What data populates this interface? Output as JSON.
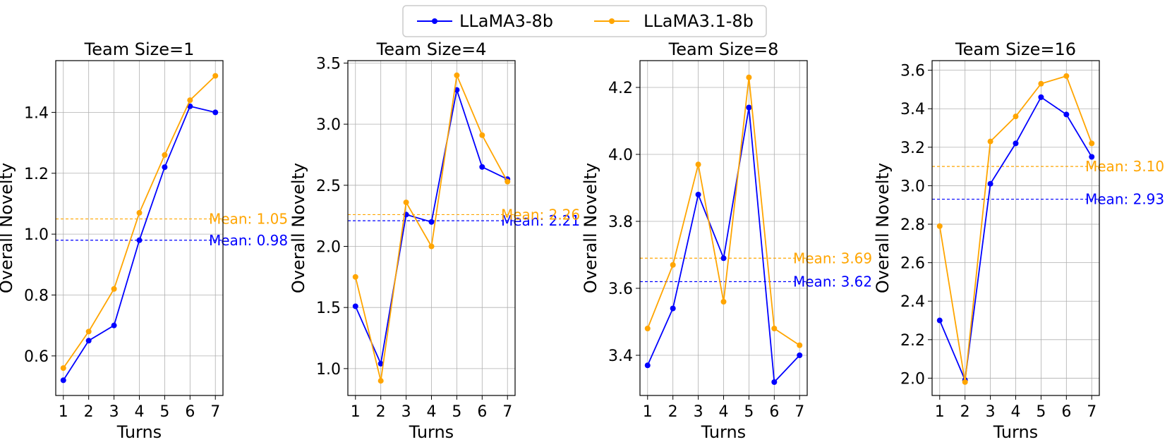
{
  "legend": {
    "entries": [
      "LLaMA3-8b",
      "LLaMA3.1-8b"
    ]
  },
  "colors": {
    "LLaMA3-8b": "#0000ff",
    "LLaMA3.1-8b": "#ffa500"
  },
  "chart_data": [
    {
      "type": "line",
      "title": "Team Size=1",
      "xlabel": "Turns",
      "ylabel": "Overall Novelty",
      "x": [
        1,
        2,
        3,
        4,
        5,
        6,
        7
      ],
      "ylim": [
        0.47,
        1.57
      ],
      "yticks": [
        0.6,
        0.8,
        1.0,
        1.2,
        1.4
      ],
      "series": [
        {
          "name": "LLaMA3-8b",
          "values": [
            0.52,
            0.65,
            0.7,
            0.98,
            1.22,
            1.42,
            1.4
          ],
          "mean": 0.98,
          "mean_label": "Mean: 0.98"
        },
        {
          "name": "LLaMA3.1-8b",
          "values": [
            0.56,
            0.68,
            0.82,
            1.07,
            1.26,
            1.44,
            1.52
          ],
          "mean": 1.05,
          "mean_label": "Mean: 1.05"
        }
      ]
    },
    {
      "type": "line",
      "title": "Team Size=4",
      "xlabel": "Turns",
      "ylabel": "Overall Novelty",
      "x": [
        1,
        2,
        3,
        4,
        5,
        6,
        7
      ],
      "ylim": [
        0.78,
        3.52
      ],
      "yticks": [
        1.0,
        1.5,
        2.0,
        2.5,
        3.0,
        3.5
      ],
      "series": [
        {
          "name": "LLaMA3-8b",
          "values": [
            1.51,
            1.04,
            2.26,
            2.2,
            3.28,
            2.65,
            2.55
          ],
          "mean": 2.21,
          "mean_label": "Mean: 2.21"
        },
        {
          "name": "LLaMA3.1-8b",
          "values": [
            1.75,
            0.9,
            2.36,
            2.0,
            3.4,
            2.91,
            2.53
          ],
          "mean": 2.26,
          "mean_label": "Mean: 2.26"
        }
      ]
    },
    {
      "type": "line",
      "title": "Team Size=8",
      "xlabel": "Turns",
      "ylabel": "Overall Novelty",
      "x": [
        1,
        2,
        3,
        4,
        5,
        6,
        7
      ],
      "ylim": [
        3.28,
        4.28
      ],
      "yticks": [
        3.4,
        3.6,
        3.8,
        4.0,
        4.2
      ],
      "series": [
        {
          "name": "LLaMA3-8b",
          "values": [
            3.37,
            3.54,
            3.88,
            3.69,
            4.14,
            3.32,
            3.4
          ],
          "mean": 3.62,
          "mean_label": "Mean: 3.62"
        },
        {
          "name": "LLaMA3.1-8b",
          "values": [
            3.48,
            3.67,
            3.97,
            3.56,
            4.23,
            3.48,
            3.43
          ],
          "mean": 3.69,
          "mean_label": "Mean: 3.69"
        }
      ]
    },
    {
      "type": "line",
      "title": "Team Size=16",
      "xlabel": "Turns",
      "ylabel": "Overall Novelty",
      "x": [
        1,
        2,
        3,
        4,
        5,
        6,
        7
      ],
      "ylim": [
        1.91,
        3.65
      ],
      "yticks": [
        2.0,
        2.2,
        2.4,
        2.6,
        2.8,
        3.0,
        3.2,
        3.4,
        3.6
      ],
      "series": [
        {
          "name": "LLaMA3-8b",
          "values": [
            2.3,
            1.99,
            3.01,
            3.22,
            3.46,
            3.37,
            3.15
          ],
          "mean": 2.93,
          "mean_label": "Mean: 2.93"
        },
        {
          "name": "LLaMA3.1-8b",
          "values": [
            2.79,
            1.98,
            3.23,
            3.36,
            3.53,
            3.57,
            3.22
          ],
          "mean": 3.1,
          "mean_label": "Mean: 3.10"
        }
      ]
    }
  ]
}
